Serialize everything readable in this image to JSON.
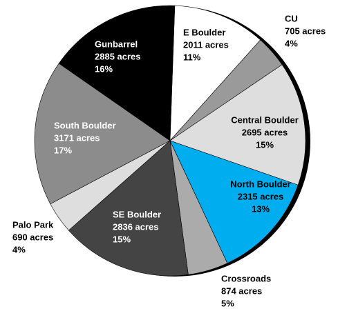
{
  "chart_data": {
    "type": "pie",
    "categories": [
      "E Boulder",
      "CU",
      "Central Boulder",
      "North Boulder",
      "Crossroads",
      "SE Boulder",
      "Palo Park",
      "South Boulder",
      "Gunbarrel"
    ],
    "values": [
      2011,
      705,
      2695,
      2315,
      874,
      2836,
      690,
      3171,
      2885
    ],
    "value_labels": [
      "2011 acres",
      "705 acres",
      "2695 acres",
      "2315 acres",
      "874 acres",
      "2836 acres",
      "690 acres",
      "3171 acres",
      "2885 acres"
    ],
    "percent_labels": [
      "11%",
      "4%",
      "15%",
      "13%",
      "5%",
      "15%",
      "4%",
      "17%",
      "16%"
    ],
    "colors": [
      "#ffffff",
      "#9a9a9a",
      "#dedede",
      "#00aeef",
      "#ababab",
      "#444444",
      "#dedede",
      "#8c8c8c",
      "#000000"
    ]
  }
}
